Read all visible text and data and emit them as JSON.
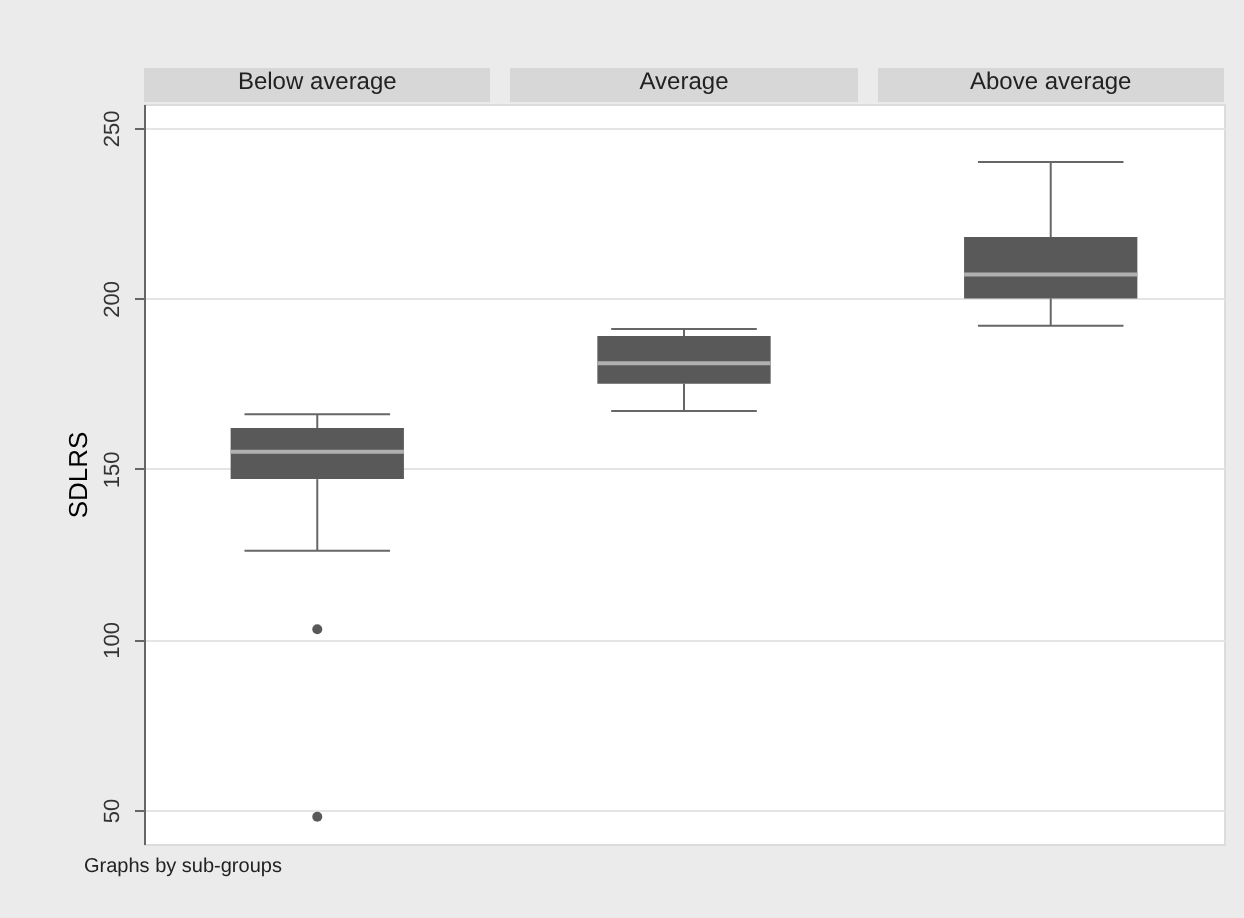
{
  "chart_data": {
    "type": "box",
    "ylabel": "SDLRS",
    "categories": [
      "Below average",
      "Average",
      "Above average"
    ],
    "color": "#595959",
    "ylim": [
      40,
      257
    ],
    "yticks": [
      50,
      100,
      150,
      200,
      250
    ],
    "grid": "y",
    "annotations": [
      "Graphs by sub-groups"
    ],
    "boxes": [
      {
        "low": 126,
        "q1": 147,
        "median": 155,
        "q3": 162,
        "high": 166,
        "outliers": [
          103,
          48
        ]
      },
      {
        "low": 167,
        "q1": 175,
        "median": 181,
        "q3": 189,
        "high": 191
      },
      {
        "low": 192,
        "q1": 200,
        "median": 207,
        "q3": 218,
        "high": 240
      }
    ]
  }
}
